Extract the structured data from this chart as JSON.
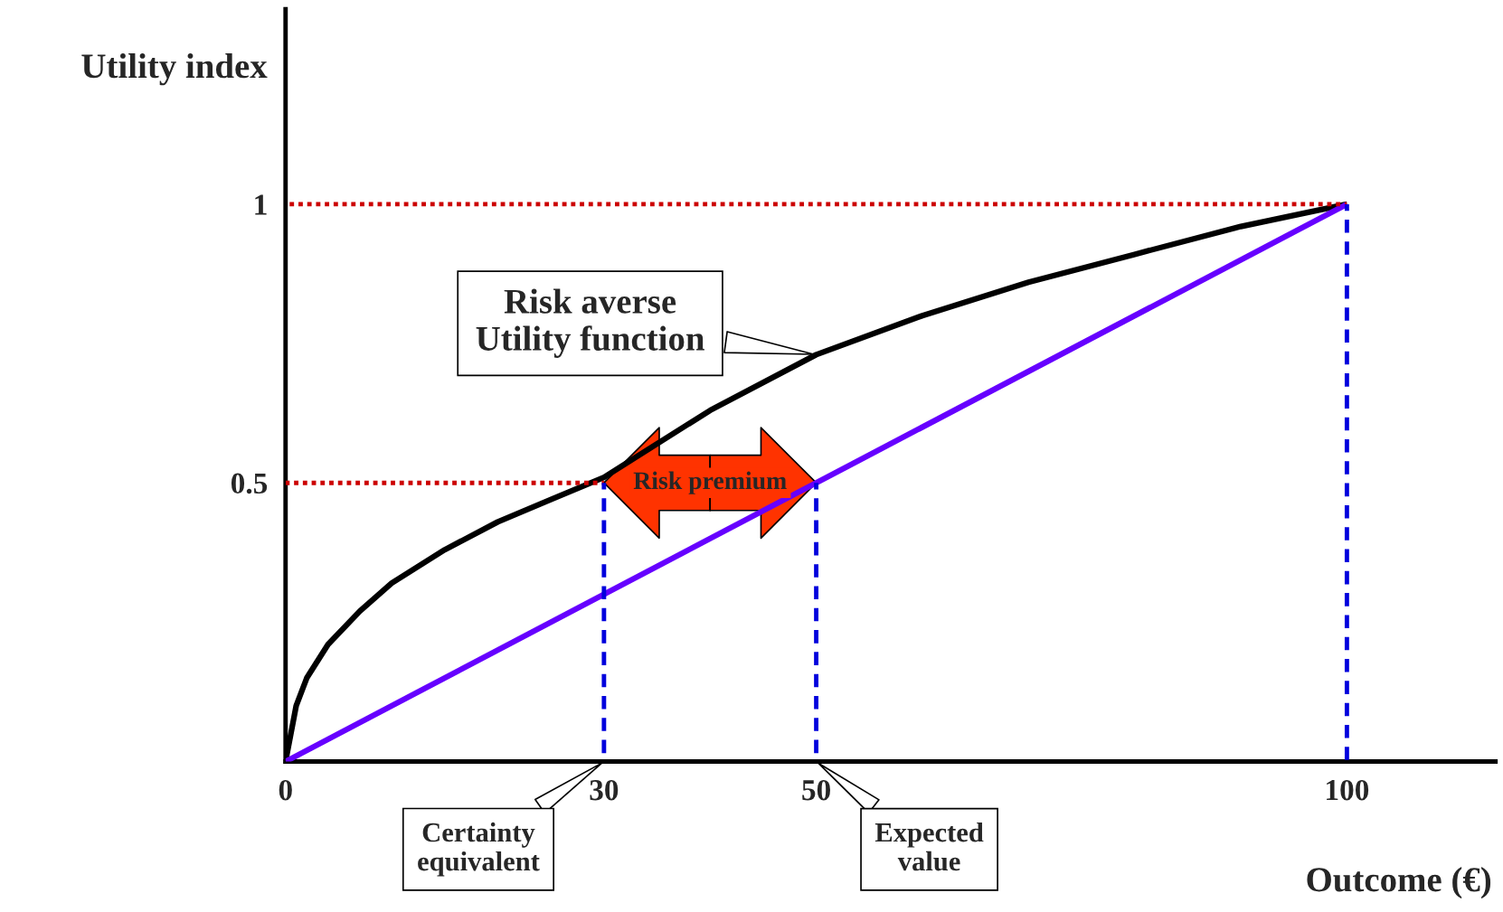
{
  "chart_data": {
    "type": "line",
    "xlabel": "Outcome (€)",
    "ylabel": "Utility index",
    "x": [
      0,
      1,
      2,
      4,
      7,
      10,
      15,
      20,
      25,
      30,
      40,
      50,
      60,
      70,
      80,
      90,
      100
    ],
    "series": [
      {
        "color": "#000000",
        "values": [
          0,
          0.1,
          0.15,
          0.21,
          0.27,
          0.32,
          0.38,
          0.43,
          0.47,
          0.51,
          0.63,
          0.73,
          0.8,
          0.86,
          0.91,
          0.96,
          1.0
        ]
      },
      {
        "color": "#6600ff",
        "x": [
          0,
          100
        ],
        "values": [
          0,
          1
        ]
      },
      {
        "color": "#cc0000",
        "line_style": "dotted",
        "x": [
          0,
          100
        ],
        "values": [
          1,
          1
        ]
      },
      {
        "color": "#cc0000",
        "line_style": "dotted",
        "x": [
          0,
          30
        ],
        "values": [
          0.5,
          0.5
        ]
      },
      {
        "color": "#0000dd",
        "line_style": "dashed",
        "x": [
          30,
          30
        ],
        "values": [
          0,
          0.5
        ]
      },
      {
        "color": "#0000dd",
        "line_style": "dashed",
        "x": [
          50,
          50
        ],
        "values": [
          0,
          0.5
        ]
      },
      {
        "color": "#0000dd",
        "line_style": "dashed",
        "x": [
          100,
          100
        ],
        "values": [
          0,
          1
        ]
      }
    ],
    "xlim": [
      0,
      114
    ],
    "ylim": [
      0,
      1.35
    ],
    "xticks": [
      0,
      30,
      50,
      100
    ],
    "yticks": [
      0.5,
      1
    ],
    "line_style": "solid",
    "marker": "none",
    "grid": false,
    "legend": false,
    "annotations": [
      "Risk averse\nUtility function",
      "Risk premium",
      "Certainty\nequivalent",
      "Expected\nvalue"
    ]
  }
}
